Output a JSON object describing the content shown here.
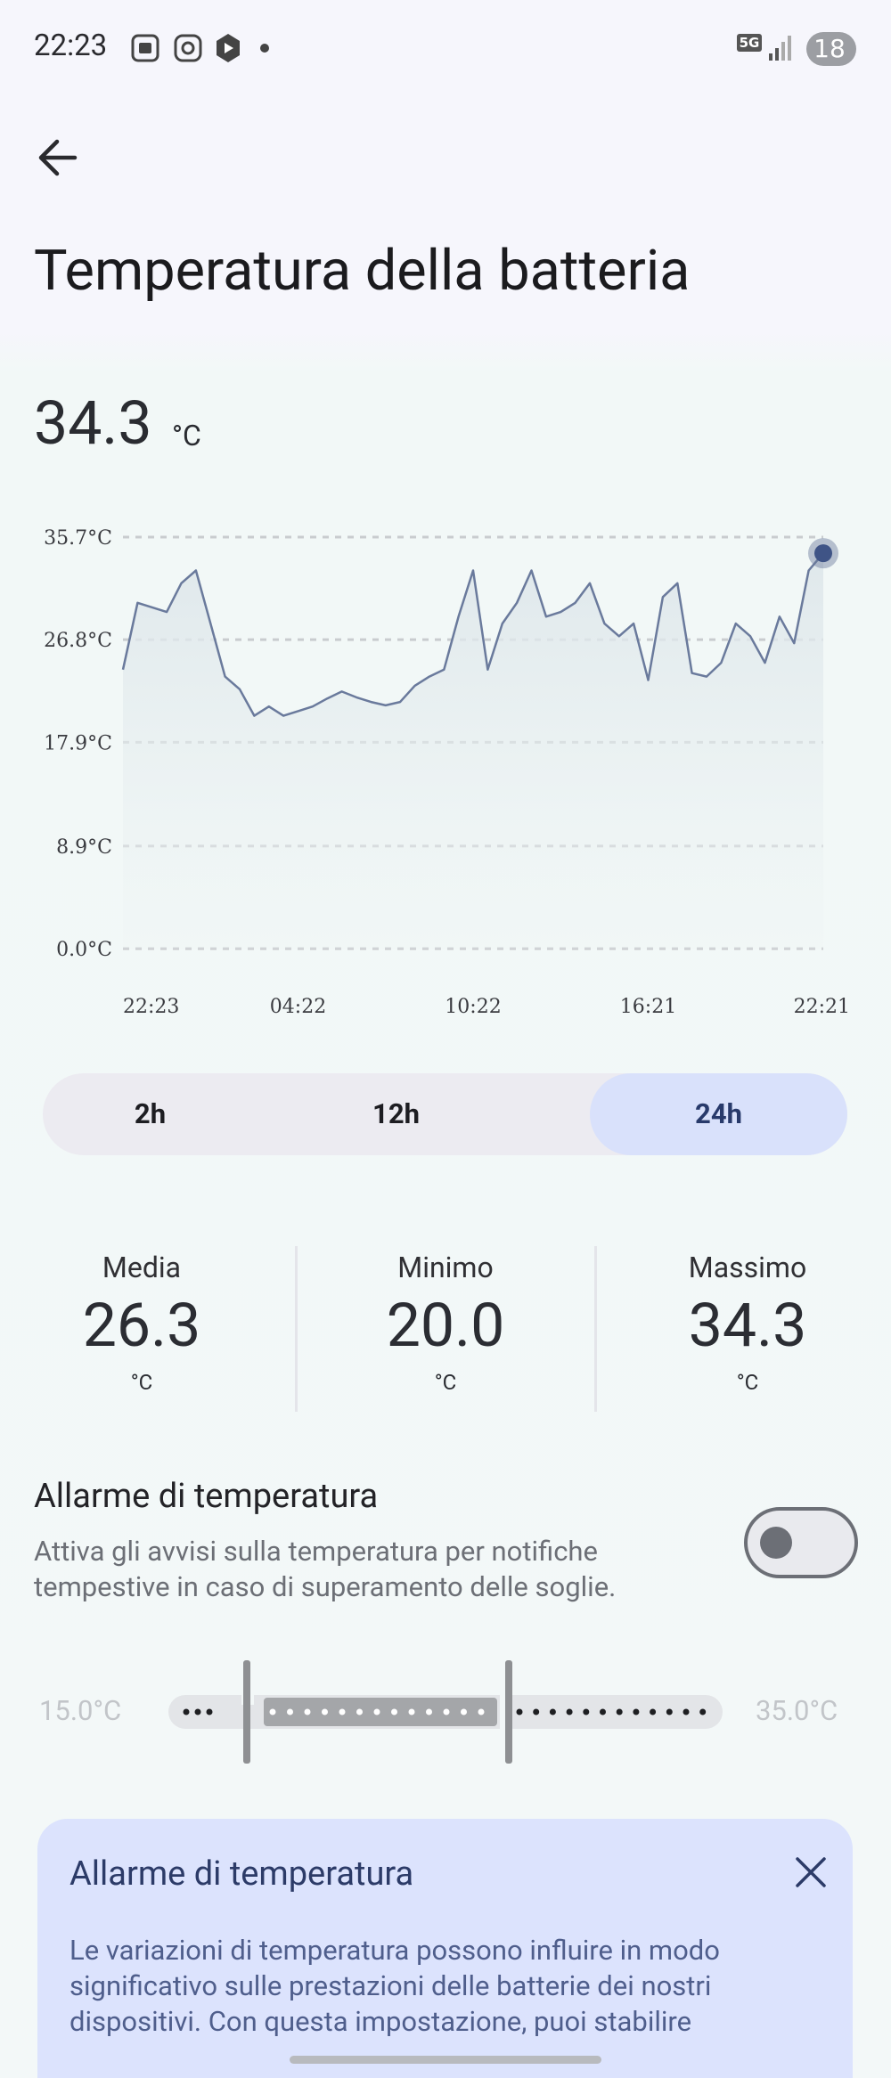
{
  "status_bar": {
    "time": "22:23",
    "network": "5G",
    "battery": "18"
  },
  "header": {
    "title": "Temperatura della batteria"
  },
  "current": {
    "value": "34.3",
    "unit": "°C"
  },
  "chart_data": {
    "type": "line",
    "categories": [
      "22:23",
      null,
      null,
      null,
      null,
      null,
      null,
      null,
      null,
      null,
      null,
      null,
      "04:22",
      null,
      null,
      null,
      null,
      null,
      null,
      null,
      null,
      null,
      null,
      null,
      "10:22",
      null,
      null,
      null,
      null,
      null,
      null,
      null,
      null,
      null,
      null,
      null,
      "16:21",
      null,
      null,
      null,
      null,
      null,
      null,
      null,
      null,
      null,
      null,
      null,
      "22:21"
    ],
    "series": [
      {
        "color": "#6a7a9c",
        "values": [
          24.2,
          30.0,
          29.6,
          29.2,
          31.7,
          32.8,
          28.2,
          23.6,
          22.5,
          20.2,
          21.0,
          20.2,
          20.6,
          21.0,
          21.7,
          22.3,
          21.8,
          21.4,
          21.1,
          21.4,
          22.8,
          23.6,
          24.2,
          28.8,
          32.8,
          24.2,
          28.2,
          30.0,
          32.8,
          28.8,
          29.2,
          30.0,
          31.7,
          28.2,
          27.1,
          28.2,
          23.3,
          30.5,
          31.7,
          23.9,
          23.6,
          24.8,
          28.2,
          27.1,
          24.8,
          28.8,
          26.5,
          32.8,
          34.3
        ]
      }
    ],
    "ylim": [
      0,
      35.7
    ],
    "yticks": [
      {
        "value": 0,
        "label": "0.0°C"
      },
      {
        "value": 8.9,
        "label": "8.9°C"
      },
      {
        "value": 17.9,
        "label": "17.9°C"
      },
      {
        "value": 26.8,
        "label": "26.8°C"
      },
      {
        "value": 35.7,
        "label": "35.7°C"
      }
    ],
    "grid": true
  },
  "range_tabs": {
    "options": [
      "2h",
      "12h",
      "24h"
    ],
    "selected": "24h"
  },
  "stats": [
    {
      "label": "Media",
      "value": "26.3",
      "unit": "°C"
    },
    {
      "label": "Minimo",
      "value": "20.0",
      "unit": "°C"
    },
    {
      "label": "Massimo",
      "value": "34.3",
      "unit": "°C"
    }
  ],
  "alarm": {
    "title": "Allarme di temperatura",
    "description": [
      "Attiva gli avvisi sulla temperatura per notifiche",
      "tempestive in caso di superamento delle soglie."
    ],
    "enabled": false,
    "min_label": "15.0°C",
    "max_label": "35.0°C"
  },
  "info_card": {
    "title": "Allarme di temperatura",
    "lines": [
      "Le variazioni di temperatura possono influire in modo",
      "significativo sulle prestazioni delle batterie dei nostri",
      "dispositivi. Con questa impostazione, puoi stabilire"
    ]
  }
}
